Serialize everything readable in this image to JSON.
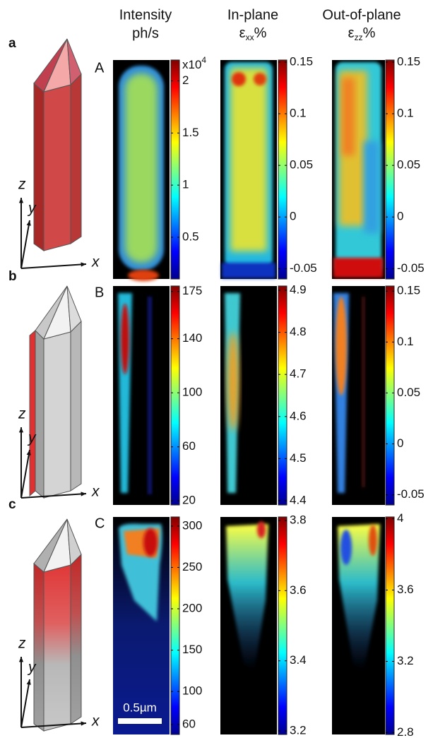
{
  "header": {
    "columns": [
      {
        "line1": "Intensity",
        "line2": "ph/s"
      },
      {
        "line1": "In-plane",
        "symbol": "ε",
        "subscript": "xx",
        "unit": "%"
      },
      {
        "line1": "Out-of-plane",
        "symbol": "ε",
        "subscript": "zz",
        "unit": "%"
      }
    ]
  },
  "multiplier": {
    "base": "x10",
    "exponent": "4"
  },
  "scale_bar": "0.5µm",
  "rows": [
    {
      "label": "a",
      "panel": "A",
      "axis_labels": [
        "z",
        "y",
        "x"
      ],
      "colorbars": [
        {
          "range": [
            0.1,
            2.2
          ],
          "ticks": [
            0.5,
            1,
            1.5,
            2
          ]
        },
        {
          "range": [
            -0.06,
            0.152
          ],
          "ticks": [
            -0.05,
            0,
            0.05,
            0.1,
            0.15
          ]
        },
        {
          "range": [
            -0.06,
            0.152
          ],
          "ticks": [
            -0.05,
            0,
            0.05,
            0.1,
            0.15
          ]
        }
      ]
    },
    {
      "label": "b",
      "panel": "B",
      "axis_labels": [
        "z",
        "y",
        "x"
      ],
      "colorbars": [
        {
          "range": [
            17,
            179
          ],
          "ticks": [
            20,
            60,
            100,
            140,
            175
          ]
        },
        {
          "range": [
            4.39,
            4.91
          ],
          "ticks": [
            4.4,
            4.5,
            4.6,
            4.7,
            4.8,
            4.9
          ]
        },
        {
          "range": [
            -0.06,
            0.155
          ],
          "ticks": [
            -0.05,
            0,
            0.05,
            0.1,
            0.15
          ]
        }
      ]
    },
    {
      "label": "c",
      "panel": "C",
      "axis_labels": [
        "z",
        "y",
        "x"
      ],
      "colorbars": [
        {
          "range": [
            48,
            311
          ],
          "ticks": [
            60,
            100,
            150,
            200,
            250,
            300
          ]
        },
        {
          "range": [
            3.19,
            3.81
          ],
          "ticks": [
            3.2,
            3.4,
            3.6,
            3.8
          ]
        },
        {
          "range": [
            2.79,
            4.01
          ],
          "ticks": [
            2.8,
            3.2,
            3.6,
            4
          ]
        }
      ]
    }
  ]
}
